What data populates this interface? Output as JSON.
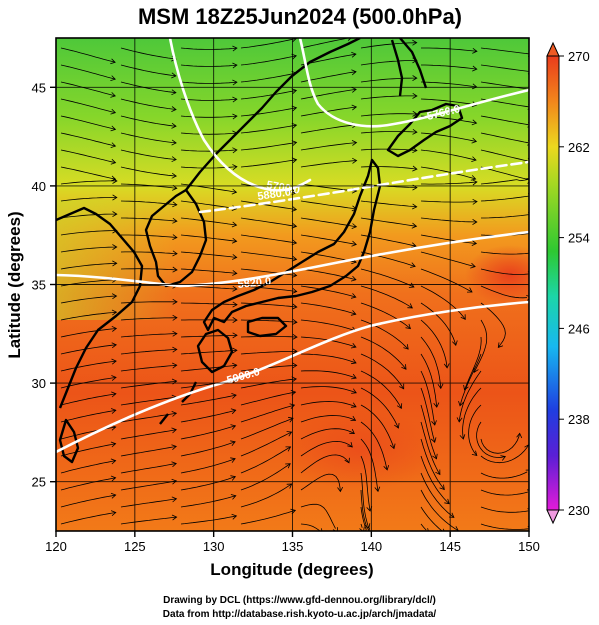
{
  "title": "MSM 18Z25Jun2024 (500.0hPa)",
  "x_axis": {
    "label": "Longitude (degrees)",
    "range": [
      120,
      150
    ],
    "ticks": [
      "120",
      "125",
      "130",
      "135",
      "140",
      "145",
      "150"
    ]
  },
  "y_axis": {
    "label": "Latitude  (degrees)",
    "range": [
      22.5,
      47.5
    ],
    "ticks": [
      "25",
      "30",
      "35",
      "40",
      "45"
    ]
  },
  "colorbar": {
    "range": [
      230,
      270
    ],
    "ticks": [
      "230",
      "238",
      "246",
      "254",
      "262",
      "270"
    ]
  },
  "contours": [
    {
      "label": "5700.0",
      "kind": "solid"
    },
    {
      "label": "5760.0",
      "kind": "solid"
    },
    {
      "label": "5820.0",
      "kind": "solid"
    },
    {
      "label": "5880.0",
      "kind": "dashed"
    },
    {
      "label": "5900.0",
      "kind": "solid"
    }
  ],
  "credits": {
    "line1": "Drawing by DCL (https://www.gfd-dennou.org/library/dcl/)",
    "line2": "Data from http://database.rish.kyoto-u.ac.jp/arch/jmadata/"
  }
}
